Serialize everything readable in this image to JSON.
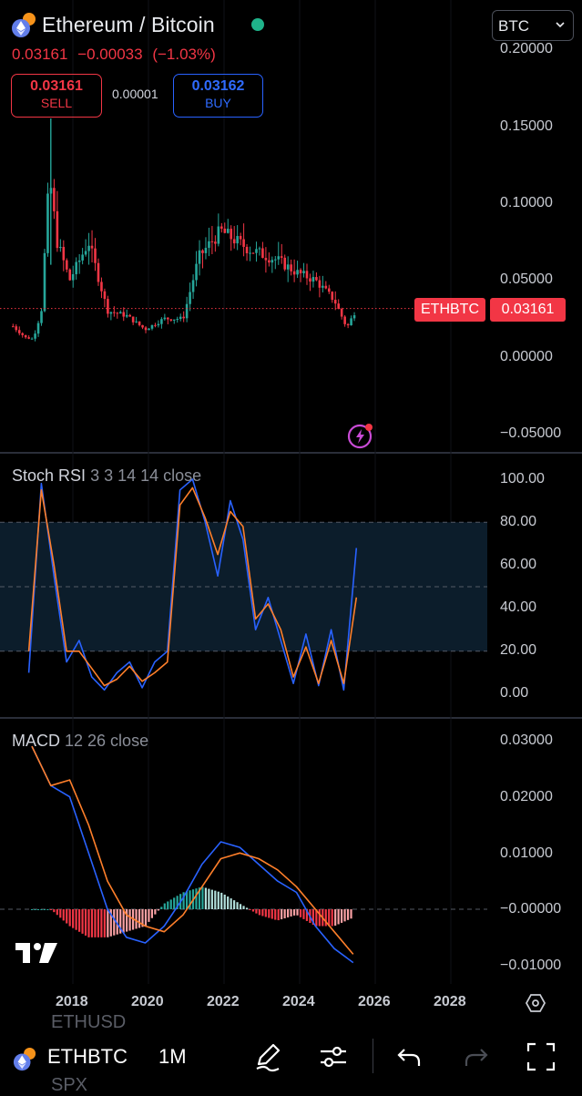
{
  "header": {
    "title": "Ethereum / Bitcoin",
    "last_price": "0.03161",
    "change": "−0.00033",
    "change_pct": "(−1.03%)",
    "currency": "BTC"
  },
  "trade": {
    "sell_price": "0.03161",
    "sell_label": "SELL",
    "spread": "0.00001",
    "buy_price": "0.03162",
    "buy_label": "BUY"
  },
  "main_chart": {
    "symbol_tag": "ETHBTC",
    "price_tag": "0.03161",
    "y_labels": [
      "0.20000",
      "0.15000",
      "0.10000",
      "0.05000",
      "0.00000",
      "−0.05000"
    ]
  },
  "stoch_rsi": {
    "name": "Stoch RSI",
    "params": "3 3 14 14 close",
    "y_labels": [
      "100.00",
      "80.00",
      "60.00",
      "40.00",
      "20.00",
      "0.00"
    ]
  },
  "macd": {
    "name": "MACD",
    "params": "12 26 close",
    "y_labels": [
      "0.03000",
      "0.02000",
      "0.01000",
      "−0.00000",
      "−0.01000"
    ]
  },
  "x_axis": [
    "2018",
    "2020",
    "2022",
    "2024",
    "2026",
    "2028"
  ],
  "bottom_bar": {
    "symbol": "ETHBTC",
    "timeframe": "1M",
    "ghost_above": "ETHUSD",
    "ghost_below": "SPX"
  },
  "colors": {
    "up": "#26a69a",
    "down": "#f23645",
    "k_line": "#2962ff",
    "d_line": "#ff7f2a",
    "buy": "#2962ff",
    "rsi_band": "#0c1d2b"
  },
  "chart_data": [
    {
      "type": "candlestick",
      "title": "Ethereum / Bitcoin",
      "interval": "1M",
      "y_axis_range": [
        -0.05,
        0.2
      ],
      "last": 0.03161,
      "x": [
        "2016-06",
        "2016-12",
        "2017-03",
        "2017-05",
        "2017-06",
        "2017-08",
        "2017-12",
        "2018-06",
        "2018-12",
        "2019-06",
        "2019-12",
        "2020-06",
        "2020-12",
        "2021-05",
        "2021-09",
        "2021-12",
        "2022-09",
        "2023-06",
        "2023-12",
        "2024-06",
        "2024-12",
        "2025-04",
        "2025-07"
      ],
      "close": [
        0.02,
        0.009,
        0.03,
        0.1,
        0.11,
        0.075,
        0.05,
        0.075,
        0.03,
        0.027,
        0.018,
        0.025,
        0.025,
        0.065,
        0.075,
        0.082,
        0.07,
        0.063,
        0.055,
        0.05,
        0.037,
        0.019,
        0.03161
      ]
    },
    {
      "type": "line",
      "name": "Stoch RSI",
      "params": "3 3 14 14 close",
      "y_axis_range": [
        0,
        100
      ],
      "band": [
        20,
        80
      ],
      "x": [
        "2016-11",
        "2017-03",
        "2017-07",
        "2017-11",
        "2018-03",
        "2018-07",
        "2018-11",
        "2019-03",
        "2019-07",
        "2019-11",
        "2020-03",
        "2020-07",
        "2020-11",
        "2021-03",
        "2021-07",
        "2021-11",
        "2022-03",
        "2022-07",
        "2022-11",
        "2023-03",
        "2023-07",
        "2023-11",
        "2024-03",
        "2024-07",
        "2024-11",
        "2025-03",
        "2025-07"
      ],
      "series": [
        {
          "name": "K",
          "values": [
            10,
            98,
            55,
            15,
            25,
            8,
            2,
            10,
            15,
            3,
            15,
            20,
            95,
            100,
            80,
            55,
            90,
            72,
            30,
            45,
            25,
            5,
            28,
            4,
            30,
            2,
            68
          ]
        },
        {
          "name": "D",
          "values": [
            20,
            95,
            60,
            20,
            20,
            12,
            4,
            7,
            13,
            6,
            10,
            15,
            88,
            96,
            82,
            65,
            85,
            78,
            35,
            42,
            30,
            8,
            22,
            5,
            25,
            5,
            45
          ]
        }
      ]
    },
    {
      "type": "line",
      "name": "MACD",
      "params": "12 26 close",
      "y_axis_range": [
        -0.012,
        0.03
      ],
      "x": [
        "2016-12",
        "2017-06",
        "2017-12",
        "2018-06",
        "2018-12",
        "2019-06",
        "2019-12",
        "2020-06",
        "2020-12",
        "2021-06",
        "2021-12",
        "2022-06",
        "2022-12",
        "2023-06",
        "2023-12",
        "2024-06",
        "2024-12",
        "2025-06"
      ],
      "series": [
        {
          "name": "MACD",
          "values": [
            0.029,
            0.022,
            0.02,
            0.01,
            0.0,
            -0.005,
            -0.006,
            -0.003,
            0.002,
            0.008,
            0.012,
            0.011,
            0.008,
            0.005,
            0.003,
            -0.003,
            -0.007,
            -0.0095
          ]
        },
        {
          "name": "Signal",
          "values": [
            0.029,
            0.022,
            0.023,
            0.015,
            0.005,
            -0.001,
            -0.003,
            -0.004,
            -0.001,
            0.004,
            0.009,
            0.01,
            0.009,
            0.007,
            0.004,
            0.0,
            -0.004,
            -0.008
          ]
        },
        {
          "name": "Histogram",
          "values": [
            0.0,
            0.0,
            -0.003,
            -0.005,
            -0.005,
            -0.004,
            -0.003,
            0.001,
            0.003,
            0.004,
            0.003,
            0.001,
            -0.001,
            -0.002,
            -0.001,
            -0.003,
            -0.003,
            -0.0015
          ]
        }
      ]
    }
  ]
}
